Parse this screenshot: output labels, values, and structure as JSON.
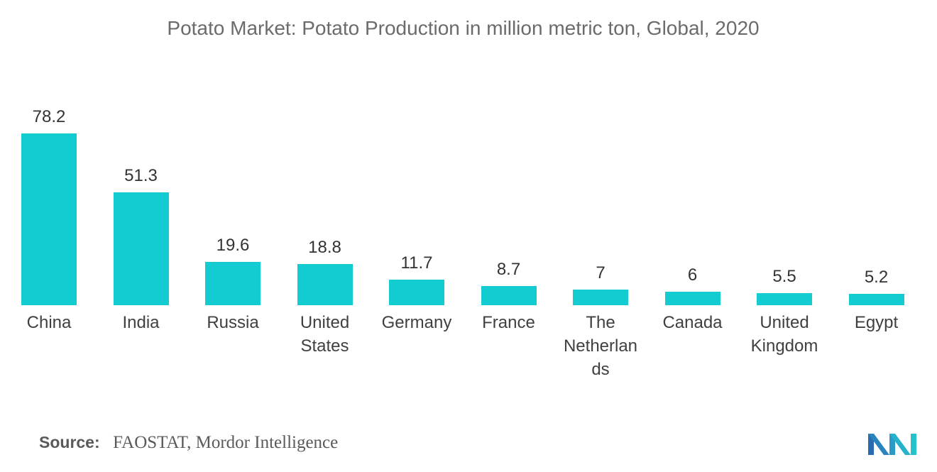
{
  "chart_data": {
    "type": "bar",
    "title": "Potato Market: Potato Production in million metric ton, Global, 2020",
    "categories": [
      "China",
      "India",
      "Russia",
      "United States",
      "Germany",
      "France",
      "The Netherlands",
      "Canada",
      "United Kingdom",
      "Egypt"
    ],
    "values": [
      78.2,
      51.3,
      19.6,
      18.8,
      11.7,
      8.7,
      7,
      6,
      5.5,
      5.2
    ],
    "bar_color": "#12CCD2",
    "grid": false
  },
  "source": {
    "label": "Source:",
    "text": "FAOSTAT, Mordor Intelligence"
  },
  "logo": {
    "icon": "mordor-intelligence-logo",
    "colors": [
      "#2B6CB0",
      "#2A9BC8",
      "#22C3CB"
    ]
  }
}
